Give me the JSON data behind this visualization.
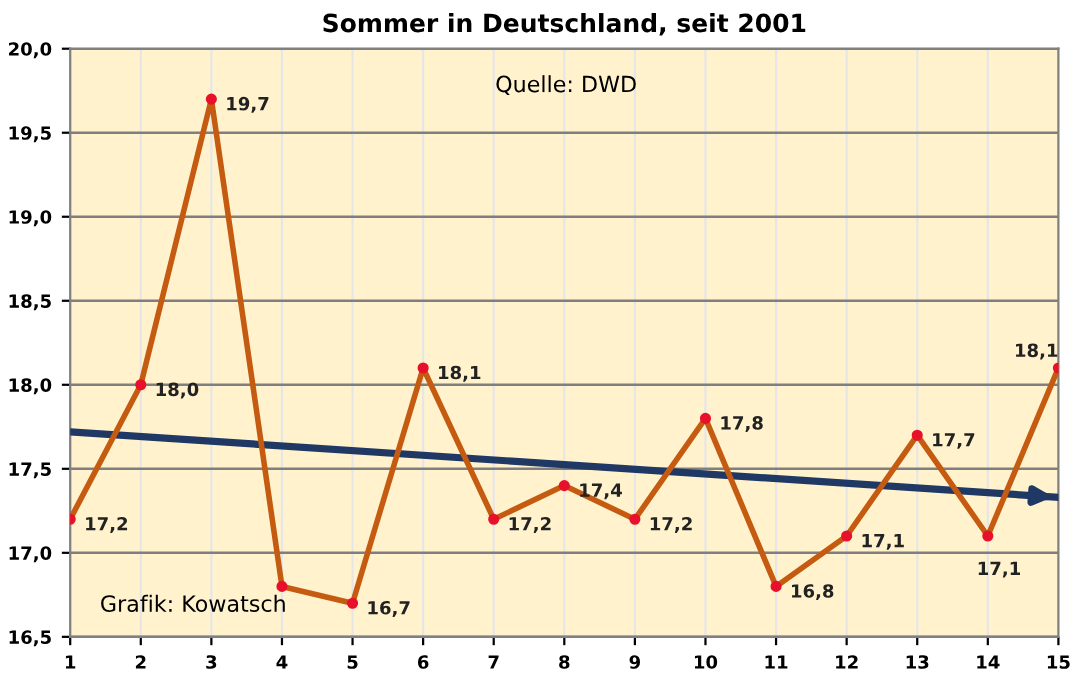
{
  "chart_data": {
    "type": "line",
    "title": "Sommer in Deutschland, seit 2001",
    "x": [
      1,
      2,
      3,
      4,
      5,
      6,
      7,
      8,
      9,
      10,
      11,
      12,
      13,
      14,
      15
    ],
    "series": [
      {
        "color": "#c55a11",
        "values": [
          17.2,
          18.0,
          19.7,
          16.8,
          16.7,
          18.1,
          17.2,
          17.4,
          17.2,
          17.8,
          16.8,
          17.1,
          17.7,
          17.1,
          18.1
        ],
        "value_labels": [
          "17,2",
          "18,0",
          "19,7",
          null,
          "16,7",
          "18,1",
          "17,2",
          "17,4",
          "17,2",
          "17,8",
          "16,8",
          "17,1",
          "17,7",
          "17,1",
          "18,1"
        ],
        "marker": "circle"
      },
      {
        "color": "#1f3864",
        "x": [
          1,
          15
        ],
        "values": [
          17.72,
          17.33
        ],
        "marker": "none"
      }
    ],
    "xlim": [
      1,
      15
    ],
    "xticks": [
      1,
      2,
      3,
      4,
      5,
      6,
      7,
      8,
      9,
      10,
      11,
      12,
      13,
      14,
      15
    ],
    "ylim": [
      16.5,
      20.0
    ],
    "yticks": [
      {
        "value": 16.5,
        "label": "16,5"
      },
      {
        "value": 17.0,
        "label": "17,0"
      },
      {
        "value": 17.5,
        "label": "17,5"
      },
      {
        "value": 18.0,
        "label": "18,0"
      },
      {
        "value": 18.5,
        "label": "18,5"
      },
      {
        "value": 19.0,
        "label": "19,0"
      },
      {
        "value": 19.5,
        "label": "19,5"
      },
      {
        "value": 20.0,
        "label": "20,0"
      }
    ],
    "grid": true,
    "line_style": "solid",
    "annotations": [
      "Quelle: DWD",
      "Grafik: Kowatsch"
    ]
  }
}
